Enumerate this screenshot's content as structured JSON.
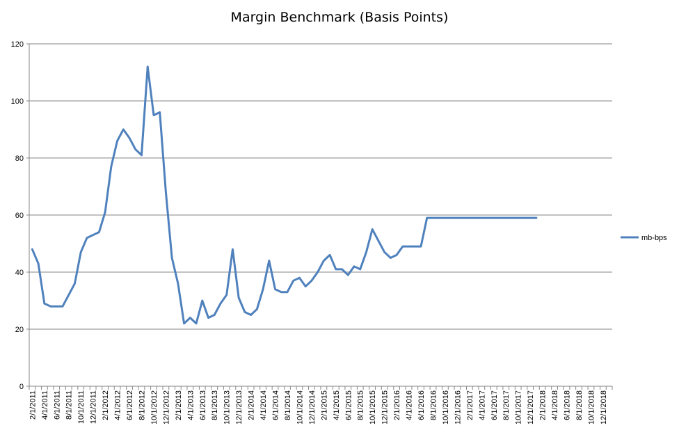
{
  "chart_data": {
    "type": "line",
    "title": "Margin Benchmark (Basis Points)",
    "xlabel": "",
    "ylabel": "",
    "ylim": [
      0,
      120
    ],
    "yticks": [
      0,
      20,
      40,
      60,
      80,
      100,
      120
    ],
    "grid": true,
    "legend_position": "right",
    "color": "#4f81bd",
    "x_tick_labels": [
      "2/1/2011",
      "4/1/2011",
      "6/1/2011",
      "8/1/2011",
      "10/1/2011",
      "12/1/2011",
      "2/1/2012",
      "4/1/2012",
      "6/1/2012",
      "8/1/2012",
      "10/1/2012",
      "12/1/2012",
      "2/1/2013",
      "4/1/2013",
      "6/1/2013",
      "8/1/2013",
      "10/1/2013",
      "12/1/2013",
      "2/1/2014",
      "4/1/2014",
      "6/1/2014",
      "8/1/2014",
      "10/1/2014",
      "12/1/2014",
      "2/1/2015",
      "4/1/2015",
      "6/1/2015",
      "8/1/2015",
      "10/1/2015",
      "12/1/2015",
      "2/1/2016",
      "4/1/2016",
      "6/1/2016",
      "8/1/2016",
      "10/1/2016",
      "12/1/2016",
      "2/1/2017",
      "4/1/2017",
      "6/1/2017",
      "8/1/2017",
      "10/1/2017",
      "12/1/2017",
      "2/1/2018",
      "4/1/2018",
      "6/1/2018",
      "8/1/2018",
      "10/1/2018",
      "12/1/2018"
    ],
    "series": [
      {
        "name": "mb-bps",
        "values": [
          48,
          43,
          29,
          28,
          28,
          28,
          32,
          36,
          47,
          52,
          53,
          54,
          61,
          77,
          86,
          90,
          87,
          83,
          81,
          112,
          95,
          96,
          68,
          45,
          36,
          22,
          24,
          22,
          30,
          24,
          25,
          29,
          32,
          48,
          31,
          26,
          25,
          27,
          34,
          44,
          34,
          33,
          33,
          37,
          38,
          35,
          37,
          40,
          44,
          46,
          41,
          41,
          39,
          42,
          41,
          47,
          55,
          51,
          47,
          45,
          46,
          49,
          49,
          49,
          49,
          59,
          59,
          59,
          59,
          59,
          59,
          59,
          59,
          59,
          59,
          59,
          59,
          59,
          59,
          59,
          59,
          59,
          59,
          59
        ]
      }
    ]
  }
}
